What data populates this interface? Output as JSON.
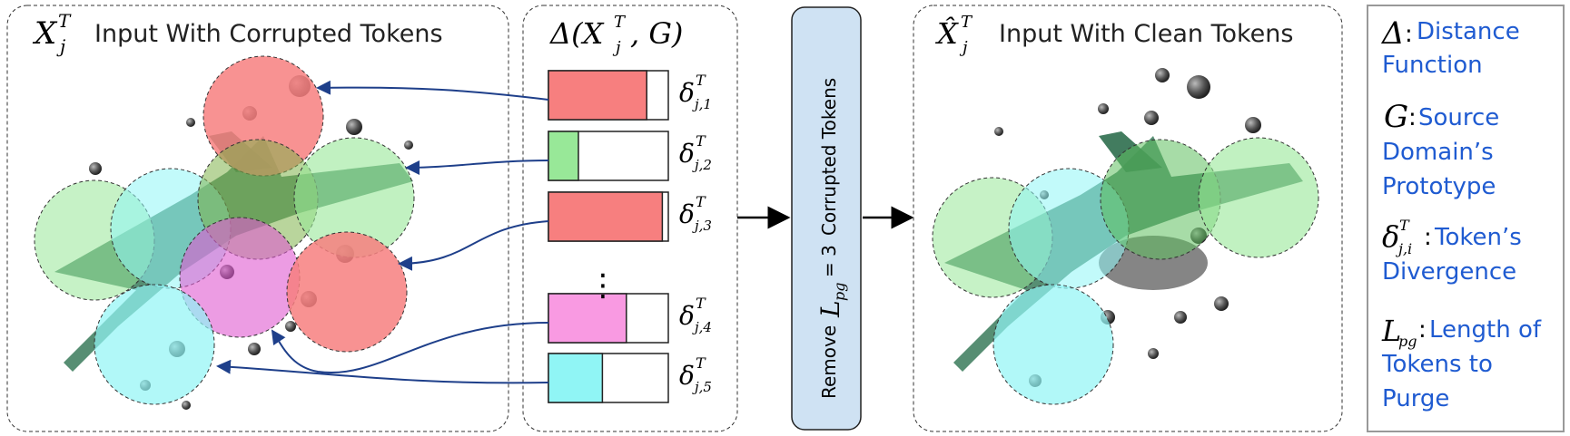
{
  "panels": {
    "corrupted": {
      "symbol": "X",
      "superscript": "T",
      "subscript": "j",
      "title": "Input With Corrupted Tokens"
    },
    "distance": {
      "title": "Δ(X",
      "superscript": "T",
      "subscript": "j",
      "title_end": ", G)"
    },
    "remove": {
      "prefix": "Remove",
      "symbol": "L",
      "symbol_sub": "pg",
      "equals": "= 3",
      "suffix": "Corrupted Tokens"
    },
    "clean": {
      "symbol": "X̂",
      "superscript": "T",
      "subscript": "j",
      "title": "Input With Clean Tokens"
    }
  },
  "token_bars": [
    {
      "label_sub": "j,1",
      "fill_fraction": 0.82,
      "color": "#f77f7f"
    },
    {
      "label_sub": "j,2",
      "fill_fraction": 0.25,
      "color": "#98e898"
    },
    {
      "label_sub": "j,3",
      "fill_fraction": 0.95,
      "color": "#f77f7f"
    },
    {
      "label_sub": "j,4",
      "fill_fraction": 0.65,
      "color": "#f99ae2"
    },
    {
      "label_sub": "j,5",
      "fill_fraction": 0.45,
      "color": "#90f5f5"
    }
  ],
  "token_label_symbol": "δ",
  "token_label_sup": "T",
  "ellipsis": "⋮",
  "legend": {
    "delta": {
      "symbol": "Δ",
      "colon": ":",
      "line1": "Distance",
      "line2": "Function"
    },
    "g": {
      "symbol": "G",
      "colon": ":",
      "line1": "Source",
      "line2": "Domain’s",
      "line3": "Prototype"
    },
    "token": {
      "symbol": "δ",
      "sup": "T",
      "sub": "j,i",
      "colon": ":",
      "line1": "Token’s",
      "line2": "Divergence"
    },
    "lpg": {
      "symbol": "L",
      "sub": "pg",
      "colon": ":",
      "line1": "Length of",
      "line2": "Tokens to",
      "line3": "Purge"
    }
  },
  "colors": {
    "red": "#f77f7f",
    "green": "#98e898",
    "cyan": "#90f5f5",
    "magenta": "#f99ae2",
    "arrow": "#1e3f8a",
    "remove_box": "#cfe2f3",
    "legend_text": "#1f5bd1"
  }
}
